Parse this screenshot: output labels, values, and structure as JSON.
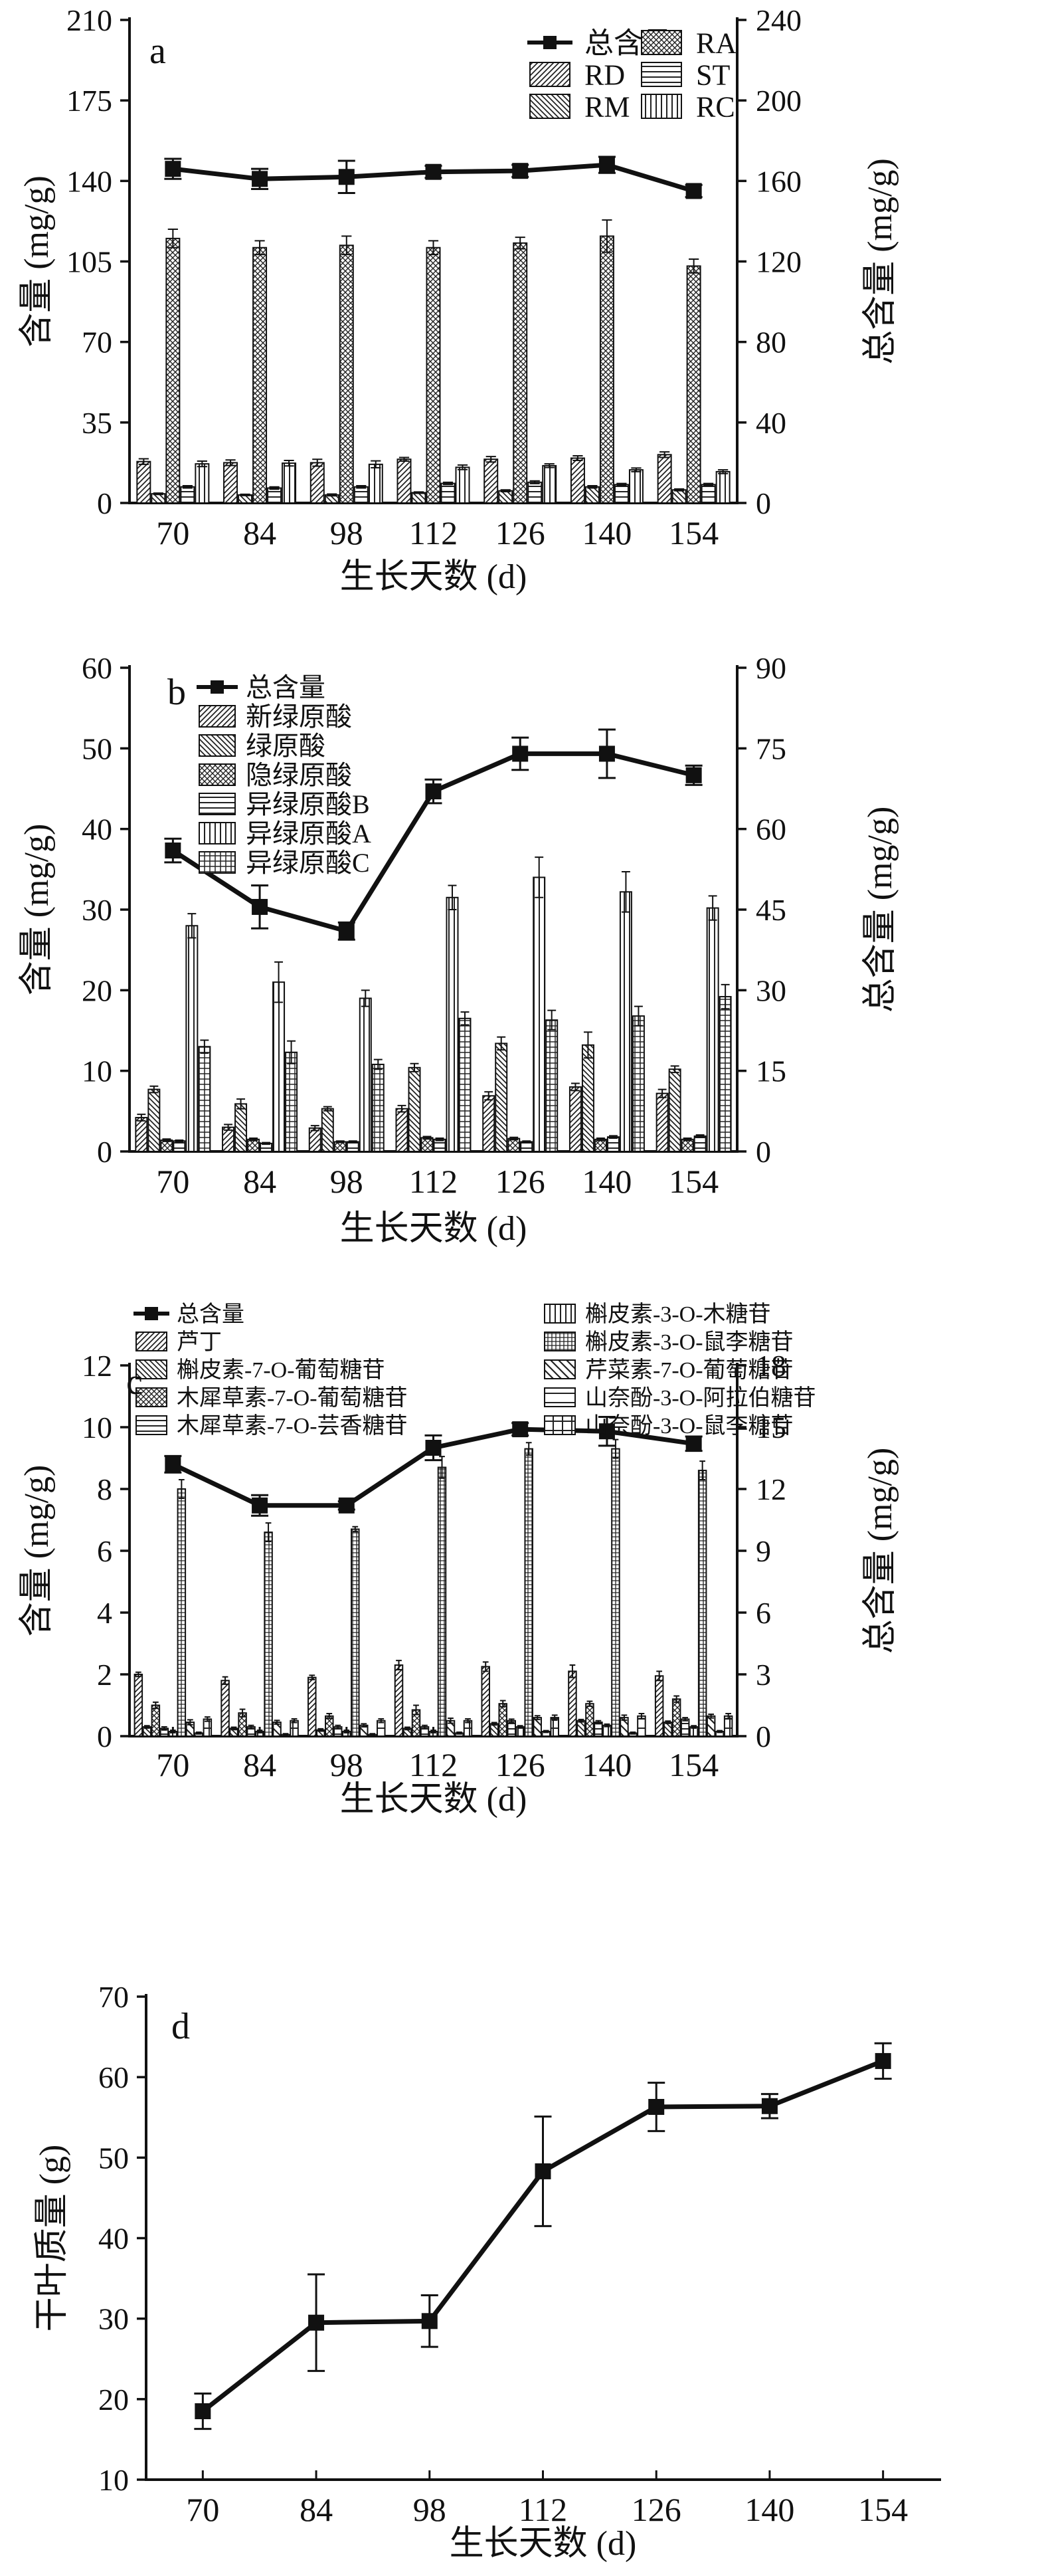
{
  "figure": {
    "description": "Four stacked scientific panels (a-d) showing compound contents and dry leaf mass versus growth days",
    "x_axis_label": "生长天数 (d)",
    "panel_letters": [
      "a",
      "b",
      "c",
      "d"
    ]
  },
  "chart_data": [
    {
      "panel": "a",
      "type": "bar+line",
      "xlabel": "生长天数 (d)",
      "ylabel_left": "含量 (mg/g)",
      "ylabel_right": "总含量 (mg/g)",
      "categories": [
        70,
        84,
        98,
        112,
        126,
        140,
        154
      ],
      "left_axis": {
        "min": 0,
        "max": 210,
        "step": 35
      },
      "right_axis": {
        "min": 0,
        "max": 240,
        "step": 40
      },
      "grid": false,
      "legend_position": "top-inside",
      "line": {
        "name": "总含量",
        "axis": "right",
        "values": [
          166,
          161,
          162,
          164.5,
          165,
          168,
          155
        ],
        "errors": [
          5,
          5,
          8,
          3,
          3,
          4,
          3
        ]
      },
      "bars": [
        {
          "name": "RD",
          "hatch": "diag-fwd",
          "values": [
            18,
            17.5,
            17.5,
            19,
            19,
            19.5,
            21
          ],
          "errors": [
            1.2,
            1.2,
            1.5,
            0.8,
            1.2,
            1.0,
            1.2
          ]
        },
        {
          "name": "RM",
          "hatch": "diag-back",
          "values": [
            4,
            3.5,
            3.5,
            4.5,
            5.3,
            7,
            5.7
          ],
          "errors": [
            0.3,
            0.3,
            0.4,
            0.3,
            0.4,
            0.5,
            0.4
          ]
        },
        {
          "name": "RA",
          "hatch": "cross",
          "values": [
            115,
            111,
            112,
            111,
            113,
            116,
            103
          ],
          "errors": [
            4,
            3,
            4,
            3,
            2.5,
            7,
            3
          ]
        },
        {
          "name": "ST",
          "hatch": "horiz",
          "values": [
            7,
            6.5,
            7,
            8.5,
            9,
            8,
            8
          ],
          "errors": [
            0.5,
            0.5,
            0.5,
            0.5,
            0.6,
            0.5,
            0.5
          ]
        },
        {
          "name": "RC",
          "hatch": "vert",
          "values": [
            17,
            17.3,
            16.8,
            15.5,
            16.2,
            14.4,
            13.6
          ],
          "errors": [
            1.2,
            1.2,
            1.5,
            1.0,
            0.8,
            0.8,
            0.8
          ]
        }
      ]
    },
    {
      "panel": "b",
      "type": "bar+line",
      "xlabel": "生长天数 (d)",
      "ylabel_left": "含量 (mg/g)",
      "ylabel_right": "总含量 (mg/g)",
      "categories": [
        70,
        84,
        98,
        112,
        126,
        140,
        154
      ],
      "left_axis": {
        "min": 0,
        "max": 60,
        "step": 10
      },
      "right_axis": {
        "min": 0,
        "max": 90,
        "step": 15
      },
      "grid": false,
      "legend_position": "top-inside",
      "line": {
        "name": "总含量",
        "axis": "right",
        "values": [
          56,
          45.5,
          41,
          67,
          74,
          74,
          70
        ],
        "errors": [
          2.2,
          4.0,
          1.6,
          2.2,
          3.0,
          4.5,
          1.8
        ]
      },
      "bars": [
        {
          "name": "新绿原酸",
          "hatch": "diag-fwd",
          "values": [
            4.2,
            3.0,
            2.9,
            5.3,
            6.9,
            8.0,
            7.2
          ],
          "errors": [
            0.4,
            0.35,
            0.3,
            0.4,
            0.5,
            0.45,
            0.5
          ]
        },
        {
          "name": "绿原酸",
          "hatch": "diag-back",
          "values": [
            7.7,
            5.9,
            5.3,
            10.4,
            13.4,
            13.2,
            10.2
          ],
          "errors": [
            0.4,
            0.6,
            0.25,
            0.5,
            0.8,
            1.6,
            0.4
          ]
        },
        {
          "name": "隐绿原酸",
          "hatch": "cross",
          "values": [
            1.4,
            1.5,
            1.2,
            1.7,
            1.6,
            1.5,
            1.5
          ],
          "errors": [
            0.15,
            0.15,
            0.1,
            0.15,
            0.15,
            0.15,
            0.15
          ]
        },
        {
          "name": "异绿原酸B",
          "hatch": "horiz",
          "values": [
            1.3,
            1.0,
            1.2,
            1.5,
            1.2,
            1.8,
            1.9
          ],
          "errors": [
            0.1,
            0.1,
            0.1,
            0.15,
            0.1,
            0.15,
            0.15
          ]
        },
        {
          "name": "异绿原酸A",
          "hatch": "vert",
          "values": [
            28,
            21,
            19,
            31.5,
            34,
            32.2,
            30.2
          ],
          "errors": [
            1.5,
            2.5,
            1.0,
            1.5,
            2.5,
            2.5,
            1.5
          ]
        },
        {
          "name": "异绿原酸C",
          "hatch": "grid",
          "values": [
            13,
            12.3,
            10.8,
            16.5,
            16.3,
            16.8,
            19.2
          ],
          "errors": [
            0.8,
            1.4,
            0.6,
            0.8,
            1.2,
            1.2,
            1.5
          ]
        }
      ]
    },
    {
      "panel": "c",
      "type": "bar+line",
      "xlabel": "生长天数 (d)",
      "ylabel_left": "含量 (mg/g)",
      "ylabel_right": "总含量 (mg/g)",
      "categories": [
        70,
        84,
        98,
        112,
        126,
        140,
        154
      ],
      "left_axis": {
        "min": 0,
        "max": 12,
        "step": 2
      },
      "right_axis": {
        "min": 0,
        "max": 18,
        "step": 3
      },
      "grid": false,
      "legend_position": "top-inside",
      "line": {
        "name": "总含量",
        "axis": "right",
        "values": [
          13.2,
          11.2,
          11.2,
          14.0,
          14.9,
          14.8,
          14.2
        ],
        "errors": [
          0.4,
          0.5,
          0.2,
          0.6,
          0.3,
          0.7,
          0.35
        ]
      },
      "bars": [
        {
          "name": "芦丁",
          "hatch": "diag-fwd",
          "values": [
            2.0,
            1.8,
            1.9,
            2.3,
            2.25,
            2.1,
            1.95
          ],
          "errors": [
            0.07,
            0.12,
            0.07,
            0.15,
            0.15,
            0.2,
            0.15
          ]
        },
        {
          "name": "槲皮素-7-O-葡萄糖苷",
          "hatch": "diag-back",
          "values": [
            0.3,
            0.25,
            0.2,
            0.25,
            0.4,
            0.5,
            0.45
          ],
          "errors": [
            0.04,
            0.04,
            0.04,
            0.04,
            0.04,
            0.04,
            0.04
          ]
        },
        {
          "name": "木犀草素-7-O-葡萄糖苷",
          "hatch": "cross",
          "values": [
            1.0,
            0.75,
            0.65,
            0.85,
            1.05,
            1.05,
            1.2
          ],
          "errors": [
            0.1,
            0.12,
            0.08,
            0.15,
            0.1,
            0.08,
            0.1
          ]
        },
        {
          "name": "木犀草素-7-O-芸香糖苷",
          "hatch": "horiz",
          "values": [
            0.25,
            0.3,
            0.3,
            0.3,
            0.5,
            0.45,
            0.55
          ],
          "errors": [
            0.05,
            0.05,
            0.05,
            0.05,
            0.05,
            0.05,
            0.05
          ]
        },
        {
          "name": "槲皮素-3-O-木糖苷",
          "hatch": "vert",
          "values": [
            0.15,
            0.15,
            0.15,
            0.15,
            0.3,
            0.35,
            0.3
          ],
          "errors": [
            0.04,
            0.04,
            0.04,
            0.04,
            0.04,
            0.04,
            0.04
          ]
        },
        {
          "name": "槲皮素-3-O-鼠李糖苷",
          "hatch": "grid-fine",
          "values": [
            8.0,
            6.6,
            6.7,
            8.7,
            9.3,
            9.3,
            8.6
          ],
          "errors": [
            0.3,
            0.3,
            0.08,
            0.35,
            0.2,
            0.3,
            0.3
          ]
        },
        {
          "name": "芹菜素-7-O-葡萄糖苷",
          "hatch": "diag-back-sparse",
          "values": [
            0.45,
            0.45,
            0.35,
            0.5,
            0.6,
            0.6,
            0.65
          ],
          "errors": [
            0.08,
            0.06,
            0.05,
            0.08,
            0.06,
            0.08,
            0.06
          ]
        },
        {
          "name": "山奈酚-3-O-阿拉伯糖苷",
          "hatch": "horiz-sparse",
          "values": [
            0.1,
            0.05,
            0.05,
            0.1,
            0.15,
            0.1,
            0.15
          ],
          "errors": [
            0.03,
            0.03,
            0.03,
            0.03,
            0.03,
            0.03,
            0.03
          ]
        },
        {
          "name": "山奈酚-3-O-鼠李糖苷",
          "hatch": "grid-large",
          "values": [
            0.55,
            0.5,
            0.5,
            0.5,
            0.6,
            0.65,
            0.65
          ],
          "errors": [
            0.07,
            0.06,
            0.06,
            0.06,
            0.08,
            0.08,
            0.08
          ]
        }
      ]
    },
    {
      "panel": "d",
      "type": "line",
      "xlabel": "生长天数 (d)",
      "ylabel_left": "干叶质量 (g)",
      "categories": [
        70,
        84,
        98,
        112,
        126,
        140,
        154
      ],
      "left_axis": {
        "min": 10,
        "max": 70,
        "step": 10
      },
      "grid": false,
      "line": {
        "name": "干叶质量",
        "axis": "left",
        "values": [
          18.5,
          29.5,
          29.7,
          48.3,
          56.3,
          56.4,
          62.0
        ],
        "errors": [
          2.2,
          6.0,
          3.2,
          6.8,
          3.0,
          1.5,
          2.2
        ]
      }
    }
  ]
}
